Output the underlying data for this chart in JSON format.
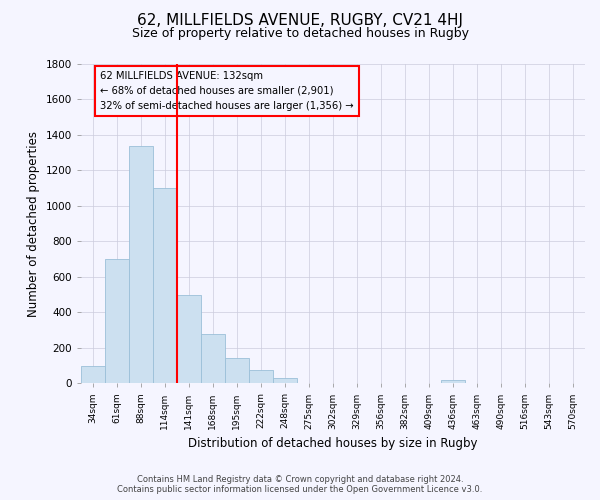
{
  "title": "62, MILLFIELDS AVENUE, RUGBY, CV21 4HJ",
  "subtitle": "Size of property relative to detached houses in Rugby",
  "xlabel": "Distribution of detached houses by size in Rugby",
  "ylabel": "Number of detached properties",
  "bin_labels": [
    "34sqm",
    "61sqm",
    "88sqm",
    "114sqm",
    "141sqm",
    "168sqm",
    "195sqm",
    "222sqm",
    "248sqm",
    "275sqm",
    "302sqm",
    "329sqm",
    "356sqm",
    "382sqm",
    "409sqm",
    "436sqm",
    "463sqm",
    "490sqm",
    "516sqm",
    "543sqm",
    "570sqm"
  ],
  "bar_values": [
    100,
    700,
    1340,
    1100,
    500,
    280,
    140,
    75,
    30,
    0,
    0,
    0,
    0,
    0,
    0,
    20,
    0,
    0,
    0,
    0,
    0
  ],
  "bar_color": "#cce0f0",
  "bar_edge_color": "#9bbfd8",
  "property_line_color": "red",
  "annotation_title": "62 MILLFIELDS AVENUE: 132sqm",
  "annotation_line1": "← 68% of detached houses are smaller (2,901)",
  "annotation_line2": "32% of semi-detached houses are larger (1,356) →",
  "annotation_box_color": "red",
  "ylim": [
    0,
    1800
  ],
  "yticks": [
    0,
    200,
    400,
    600,
    800,
    1000,
    1200,
    1400,
    1600,
    1800
  ],
  "footer_line1": "Contains HM Land Registry data © Crown copyright and database right 2024.",
  "footer_line2": "Contains public sector information licensed under the Open Government Licence v3.0.",
  "bg_color": "#f5f5ff",
  "grid_color": "#ccccdd"
}
